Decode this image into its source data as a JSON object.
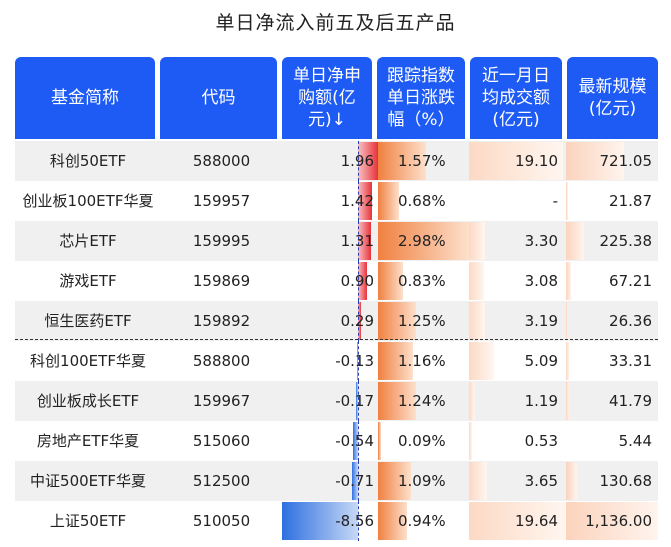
{
  "title": "单日净流入前五及后五产品",
  "columns": [
    "基金简称",
    "代码",
    "单日净申购额(亿元)↓",
    "跟踪指数单日涨跌幅（%）",
    "近一月日均成交额(亿元)",
    "最新规模(亿元)"
  ],
  "rows": [
    {
      "name": "科创50ETF",
      "code": "588000",
      "net_flow": "1.96",
      "change": "1.57%",
      "avg_turnover": "19.10",
      "size": "721.05"
    },
    {
      "name": "创业板100ETF华夏",
      "code": "159957",
      "net_flow": "1.42",
      "change": "0.68%",
      "avg_turnover": "-",
      "size": "21.87"
    },
    {
      "name": "芯片ETF",
      "code": "159995",
      "net_flow": "1.31",
      "change": "2.98%",
      "avg_turnover": "3.30",
      "size": "225.38"
    },
    {
      "name": "游戏ETF",
      "code": "159869",
      "net_flow": "0.90",
      "change": "0.83%",
      "avg_turnover": "3.08",
      "size": "67.21"
    },
    {
      "name": "恒生医药ETF",
      "code": "159892",
      "net_flow": "0.29",
      "change": "1.25%",
      "avg_turnover": "3.19",
      "size": "26.36"
    },
    {
      "name": "科创100ETF华夏",
      "code": "588800",
      "net_flow": "-0.13",
      "change": "1.16%",
      "avg_turnover": "5.09",
      "size": "33.31"
    },
    {
      "name": "创业板成长ETF",
      "code": "159967",
      "net_flow": "-0.17",
      "change": "1.24%",
      "avg_turnover": "1.19",
      "size": "41.79"
    },
    {
      "name": "房地产ETF华夏",
      "code": "515060",
      "net_flow": "-0.54",
      "change": "0.09%",
      "avg_turnover": "0.53",
      "size": "5.44"
    },
    {
      "name": "中证500ETF华夏",
      "code": "512500",
      "net_flow": "-0.71",
      "change": "1.09%",
      "avg_turnover": "3.65",
      "size": "130.68"
    },
    {
      "name": "上证50ETF",
      "code": "510050",
      "net_flow": "-8.56",
      "change": "0.94%",
      "avg_turnover": "19.64",
      "size": "1,136.00"
    }
  ],
  "colors": {
    "header": "#1e5bf5",
    "positive_bar": "#e8323a",
    "negative_bar": "#2e6fe0",
    "change_bar": "#f08040",
    "turnover_bar": "#fcd9c4"
  }
}
